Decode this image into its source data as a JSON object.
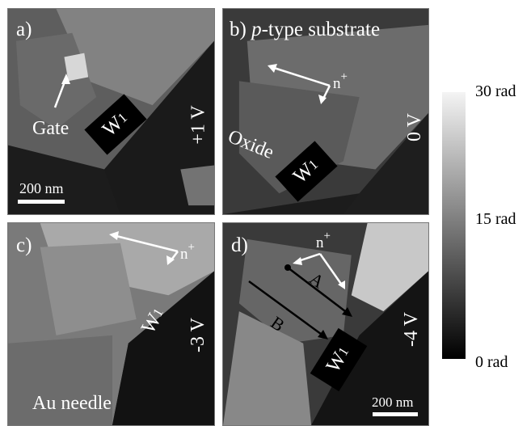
{
  "panels": [
    {
      "label": "a)",
      "voltage": "+1 V",
      "gate_label": "Gate",
      "electrode": "W",
      "electrode_sub": "1",
      "scale_label": "200 nm"
    },
    {
      "label": "b)",
      "label_italic": "p",
      "label_rest": "-type substrate",
      "voltage": "0 V",
      "oxide_label": "Oxide",
      "doping": "n",
      "doping_sup": "+",
      "electrode": "W",
      "electrode_sub": "1"
    },
    {
      "label": "c)",
      "voltage": "-3 V",
      "needle_label": "Au needle",
      "doping": "n",
      "doping_sup": "+",
      "electrode": "W",
      "electrode_sub": "1"
    },
    {
      "label": "d)",
      "voltage": "-4 V",
      "doping": "n",
      "doping_sup": "+",
      "line_a": "A",
      "line_b": "B",
      "electrode": "W",
      "electrode_sub": "1",
      "scale_label": "200 nm"
    }
  ],
  "colorbar": {
    "max_label": "30 rad",
    "mid_label": "15 rad",
    "min_label": "0 rad"
  }
}
